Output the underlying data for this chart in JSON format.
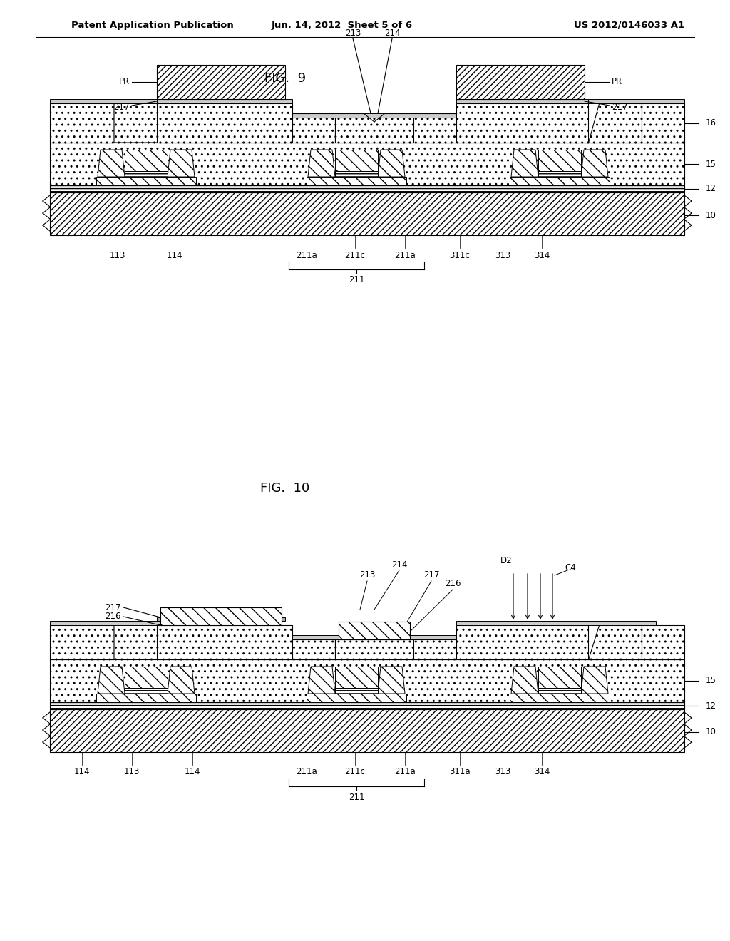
{
  "header_left": "Patent Application Publication",
  "header_mid": "Jun. 14, 2012  Sheet 5 of 6",
  "header_right": "US 2012/0146033 A1",
  "fig9_title": "FIG.  9",
  "fig10_title": "FIG.  10",
  "bg_color": "#ffffff"
}
